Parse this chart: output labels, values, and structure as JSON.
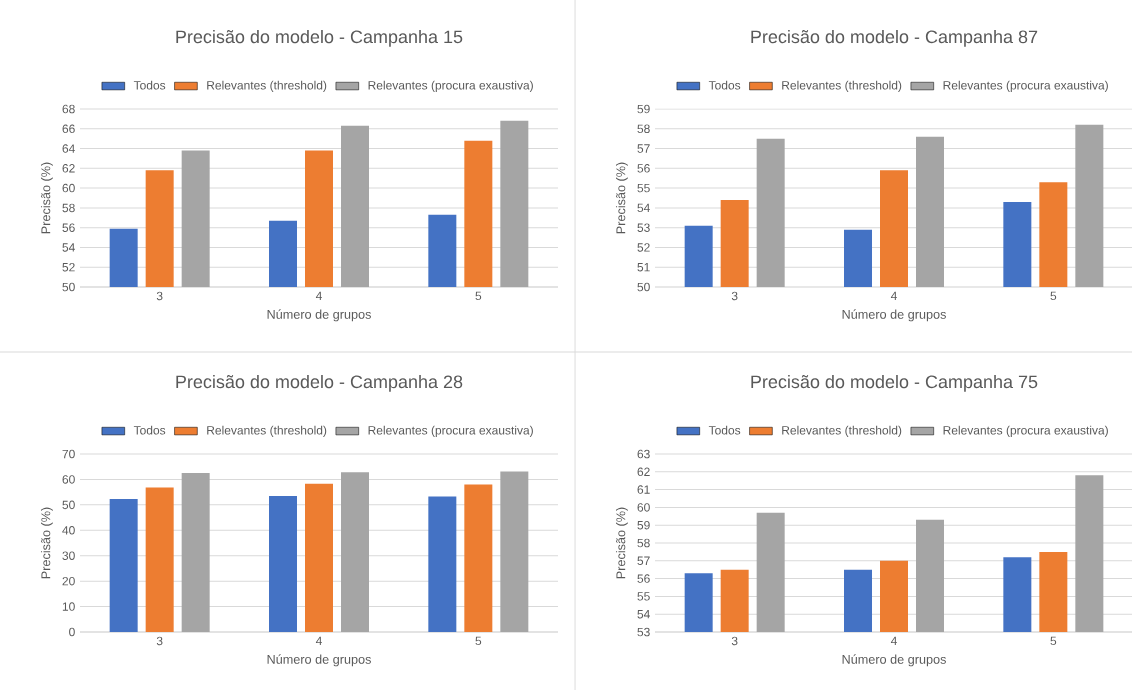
{
  "chart_data": [
    {
      "type": "bar",
      "title": "Precisão do modelo - Campanha 15",
      "xlabel": "Número de grupos",
      "ylabel": "Precisão (%)",
      "categories": [
        "3",
        "4",
        "5"
      ],
      "ylim": [
        50,
        68
      ],
      "yticks": [
        50,
        52,
        54,
        56,
        58,
        60,
        62,
        64,
        66,
        68
      ],
      "grid": "y",
      "legend": "top",
      "series": [
        {
          "name": "Todos",
          "color": "#4472c4",
          "values": [
            55.9,
            56.7,
            57.3
          ]
        },
        {
          "name": "Relevantes (threshold)",
          "color": "#ed7d31",
          "values": [
            61.8,
            63.8,
            64.8
          ]
        },
        {
          "name": "Relevantes (procura exaustiva)",
          "color": "#a5a5a5",
          "values": [
            63.8,
            66.3,
            66.8
          ]
        }
      ]
    },
    {
      "type": "bar",
      "title": "Precisão do modelo - Campanha 87",
      "xlabel": "Número de grupos",
      "ylabel": "Precisão (%)",
      "categories": [
        "3",
        "4",
        "5"
      ],
      "ylim": [
        50,
        59
      ],
      "yticks": [
        50,
        51,
        52,
        53,
        54,
        55,
        56,
        57,
        58,
        59
      ],
      "grid": "y",
      "legend": "top",
      "series": [
        {
          "name": "Todos",
          "color": "#4472c4",
          "values": [
            53.1,
            52.9,
            54.3
          ]
        },
        {
          "name": "Relevantes (threshold)",
          "color": "#ed7d31",
          "values": [
            54.4,
            55.9,
            55.3
          ]
        },
        {
          "name": "Relevantes (procura exaustiva)",
          "color": "#a5a5a5",
          "values": [
            57.5,
            57.6,
            58.2
          ]
        }
      ]
    },
    {
      "type": "bar",
      "title": "Precisão do modelo - Campanha 28",
      "xlabel": "Número de grupos",
      "ylabel": "Precisão (%)",
      "categories": [
        "3",
        "4",
        "5"
      ],
      "ylim": [
        0,
        70
      ],
      "yticks": [
        0,
        10,
        20,
        30,
        40,
        50,
        60,
        70
      ],
      "grid": "y",
      "legend": "top",
      "series": [
        {
          "name": "Todos",
          "color": "#4472c4",
          "values": [
            52.3,
            53.5,
            53.3
          ]
        },
        {
          "name": "Relevantes (threshold)",
          "color": "#ed7d31",
          "values": [
            56.8,
            58.3,
            58.0
          ]
        },
        {
          "name": "Relevantes (procura exaustiva)",
          "color": "#a5a5a5",
          "values": [
            62.5,
            62.8,
            63.1
          ]
        }
      ]
    },
    {
      "type": "bar",
      "title": "Precisão do modelo - Campanha 75",
      "xlabel": "Número de grupos",
      "ylabel": "Precisão (%)",
      "categories": [
        "3",
        "4",
        "5"
      ],
      "ylim": [
        53,
        63
      ],
      "yticks": [
        53,
        54,
        55,
        56,
        57,
        58,
        59,
        60,
        61,
        62,
        63
      ],
      "grid": "y",
      "legend": "top",
      "series": [
        {
          "name": "Todos",
          "color": "#4472c4",
          "values": [
            56.3,
            56.5,
            57.2
          ]
        },
        {
          "name": "Relevantes (threshold)",
          "color": "#ed7d31",
          "values": [
            56.5,
            57.0,
            57.5
          ]
        },
        {
          "name": "Relevantes (procura exaustiva)",
          "color": "#a5a5a5",
          "values": [
            59.7,
            59.3,
            61.8
          ]
        }
      ]
    }
  ]
}
